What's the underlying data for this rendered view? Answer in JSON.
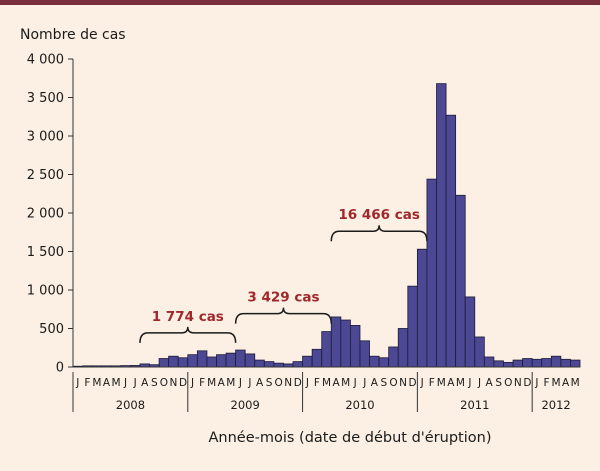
{
  "chart_data": {
    "type": "bar",
    "ylabel": "Nombre de cas",
    "xlabel": "Année-mois (date de début d'éruption)",
    "ylim": [
      0,
      4000
    ],
    "yticks": [
      0,
      500,
      1000,
      1500,
      2000,
      2500,
      3000,
      3500,
      4000
    ],
    "ytick_labels": [
      "0",
      "500",
      "1 000",
      "1 500",
      "2 000",
      "2 500",
      "3 000",
      "3 500",
      "4 000"
    ],
    "grid": false,
    "bar_color": "#4d4893",
    "categories": [
      "J",
      "F",
      "M",
      "A",
      "M",
      "J",
      "J",
      "A",
      "S",
      "O",
      "N",
      "D",
      "J",
      "F",
      "M",
      "A",
      "M",
      "J",
      "J",
      "A",
      "S",
      "O",
      "N",
      "D",
      "J",
      "F",
      "M",
      "A",
      "M",
      "J",
      "J",
      "A",
      "S",
      "O",
      "N",
      "D",
      "J",
      "F",
      "M",
      "A",
      "M",
      "J",
      "J",
      "A",
      "S",
      "O",
      "N",
      "D",
      "J",
      "F",
      "M",
      "A",
      "M"
    ],
    "values": [
      10,
      15,
      15,
      15,
      15,
      18,
      20,
      40,
      30,
      110,
      140,
      120,
      160,
      210,
      130,
      160,
      180,
      220,
      170,
      90,
      70,
      50,
      40,
      70,
      140,
      230,
      460,
      650,
      610,
      540,
      340,
      140,
      120,
      260,
      500,
      1050,
      1530,
      2440,
      3680,
      3270,
      2230,
      910,
      390,
      130,
      80,
      60,
      90,
      110,
      100,
      110,
      140,
      100,
      90
    ],
    "years": [
      {
        "label": "2008",
        "span": 12
      },
      {
        "label": "2009",
        "span": 12
      },
      {
        "label": "2010",
        "span": 12
      },
      {
        "label": "2011",
        "span": 12
      },
      {
        "label": "2012",
        "span": 5
      }
    ],
    "annotations": [
      {
        "text": "1 774 cas",
        "start": 7,
        "end": 17
      },
      {
        "text": "3 429 cas",
        "start": 17,
        "end": 27
      },
      {
        "text": "16 466 cas",
        "start": 27,
        "end": 37
      }
    ]
  }
}
